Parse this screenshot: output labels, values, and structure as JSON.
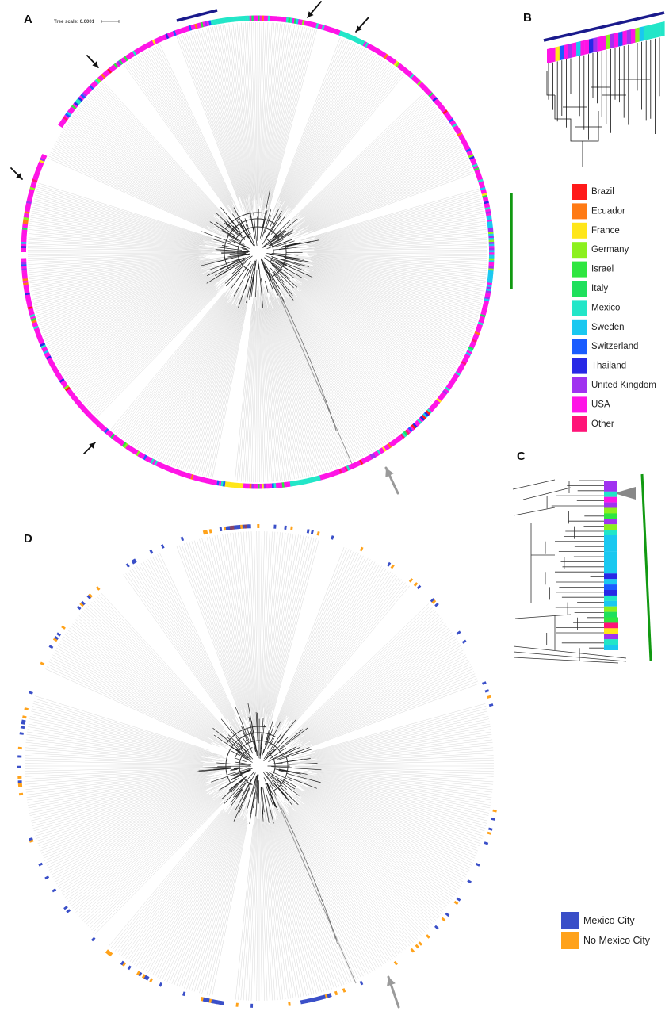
{
  "panels": {
    "a": "A",
    "b": "B",
    "c": "C",
    "d": "D"
  },
  "tree_scale_label": "Tree scale: 0.0001",
  "country_legend": [
    {
      "label": "Brazil",
      "color": "#ff1a1a"
    },
    {
      "label": "Ecuador",
      "color": "#ff7a14"
    },
    {
      "label": "France",
      "color": "#ffe619"
    },
    {
      "label": "Germany",
      "color": "#8cf01e"
    },
    {
      "label": "Israel",
      "color": "#2ee640"
    },
    {
      "label": "Italy",
      "color": "#1fe05c"
    },
    {
      "label": "Mexico",
      "color": "#22e6c8"
    },
    {
      "label": "Sweden",
      "color": "#1ac8f0"
    },
    {
      "label": "Switzerland",
      "color": "#1a5cff"
    },
    {
      "label": "Thailand",
      "color": "#2828e6"
    },
    {
      "label": "United Kingdom",
      "color": "#a032f0"
    },
    {
      "label": "USA",
      "color": "#ff14e6"
    },
    {
      "label": "Other",
      "color": "#ff1478"
    }
  ],
  "city_legend": [
    {
      "label": "Mexico City",
      "color": "#3a4fc8"
    },
    {
      "label": "No Mexico City",
      "color": "#ffa21a"
    }
  ],
  "annotation_colors": {
    "blue_clade_bar": "#1a1a8c",
    "green_clade_bar": "#119911",
    "black_arrow": "#111111",
    "gray_arrow": "#9a9a9a"
  }
}
